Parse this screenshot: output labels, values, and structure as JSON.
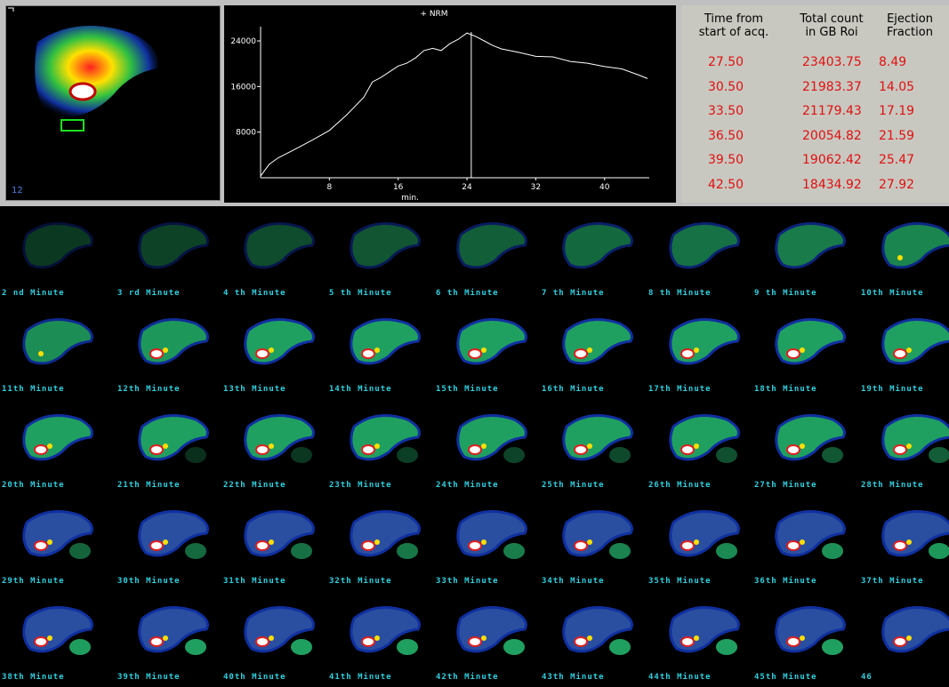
{
  "panel": {
    "frame_label": "12"
  },
  "chart_data": {
    "type": "line",
    "title": "+ NRM",
    "x_label": "min.",
    "color": "#ffffff",
    "x": [
      0,
      1,
      2,
      4,
      6,
      8,
      10,
      12,
      13,
      14,
      16,
      17,
      18,
      19,
      20,
      21,
      22,
      23,
      24,
      25,
      26,
      27,
      28,
      30,
      32,
      34,
      36,
      38,
      40,
      42,
      44,
      45
    ],
    "values": [
      300,
      2350,
      3450,
      5000,
      6600,
      8300,
      11000,
      14100,
      16800,
      17600,
      19600,
      20100,
      21000,
      22300,
      22700,
      22300,
      23500,
      24300,
      25400,
      24800,
      24000,
      23200,
      22600,
      22000,
      21300,
      21200,
      20400,
      20100,
      19500,
      19100,
      18000,
      17400
    ],
    "cursor_x": 24.5,
    "xlim": [
      0,
      45.2
    ],
    "ylim": [
      0,
      26500
    ],
    "xticks": [
      8,
      16,
      24,
      32,
      40
    ],
    "yticks": [
      8000,
      16000,
      24000
    ]
  },
  "table": {
    "headers": [
      [
        "Time from",
        "start of acq."
      ],
      [
        "Total count",
        "in GB Roi"
      ],
      [
        "Ejection",
        "Fraction"
      ]
    ],
    "rows": [
      [
        "27.50",
        "23403.75",
        "8.49"
      ],
      [
        "30.50",
        "21983.37",
        "14.05"
      ],
      [
        "33.50",
        "21179.43",
        "17.19"
      ],
      [
        "36.50",
        "20054.82",
        "21.59"
      ],
      [
        "39.50",
        "19062.42",
        "25.47"
      ],
      [
        "42.50",
        "18434.92",
        "27.92"
      ]
    ]
  },
  "frames": {
    "labels": [
      "2 nd Minute",
      "3 rd Minute",
      "4 th Minute",
      "5 th Minute",
      "6 th Minute",
      "7 th Minute",
      "8 th Minute",
      "9 th Minute",
      "10th Minute",
      "11th Minute",
      "12th Minute",
      "13th Minute",
      "14th Minute",
      "15th Minute",
      "16th Minute",
      "17th Minute",
      "18th Minute",
      "19th Minute",
      "20th Minute",
      "21th Minute",
      "22th Minute",
      "23th Minute",
      "24th Minute",
      "25th Minute",
      "26th Minute",
      "27th Minute",
      "28th Minute",
      "29th Minute",
      "30th Minute",
      "31th Minute",
      "32th Minute",
      "33th Minute",
      "34th Minute",
      "35th Minute",
      "36th Minute",
      "37th Minute",
      "38th Minute",
      "39th Minute",
      "40th Minute",
      "41th Minute",
      "42th Minute",
      "43th Minute",
      "44th Minute",
      "45th Minute",
      "46"
    ]
  }
}
